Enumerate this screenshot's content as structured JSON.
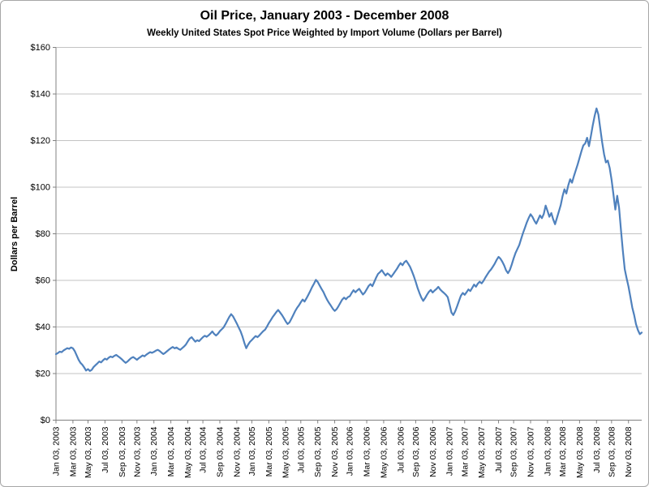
{
  "colors": {
    "line": "#4F81BD",
    "gridline": "#C3C3C3",
    "axis": "#808080",
    "background": "#FFFFFF",
    "border": "#A6A6A6",
    "text": "#000000"
  },
  "chart_data": {
    "type": "line",
    "title": "Oil Price, January 2003 - December 2008",
    "subtitle": "Weekly United States Spot Price Weighted by Import Volume (Dollars per Barrel)",
    "xlabel": "",
    "ylabel": "Dollars per Barrel",
    "ylim": [
      0,
      160
    ],
    "y_tick_step": 20,
    "y_tick_labels": [
      "$0",
      "$20",
      "$40",
      "$60",
      "$80",
      "$100",
      "$120",
      "$140",
      "$160"
    ],
    "x_tick_labels": [
      "Jan 03, 2003",
      "Mar 03, 2003",
      "May 03, 2003",
      "Jul 03, 2003",
      "Sep 03, 2003",
      "Nov 03, 2003",
      "Jan 03, 2004",
      "Mar 03, 2004",
      "May 03, 2004",
      "Jul 03, 2004",
      "Sep 03, 2004",
      "Nov 03, 2004",
      "Jan 03, 2005",
      "Mar 03, 2005",
      "May 03, 2005",
      "Jul 03, 2005",
      "Sep 03, 2005",
      "Nov 03, 2005",
      "Jan 03, 2006",
      "Mar 03, 2006",
      "May 03, 2006",
      "Jul 03, 2006",
      "Sep 03, 2006",
      "Nov 03, 2006",
      "Jan 03, 2007",
      "Mar 03, 2007",
      "May 03, 2007",
      "Jul 03, 2007",
      "Sep 03, 2007",
      "Nov 03, 2007",
      "Jan 03, 2008",
      "Mar 03, 2008",
      "May 03, 2008",
      "Jul 03, 2008",
      "Sep 03, 2008",
      "Nov 03, 2008"
    ],
    "x_tick_week_interval": 8.6905,
    "x_tick_label_rotation": -90,
    "grid": true,
    "legend": "none",
    "series": [
      {
        "name": "Weekly U.S. spot price weighted by import volume",
        "color": "#4F81BD",
        "interval": "weekly",
        "start": "Jan 03, 2003",
        "end": "Dec 26, 2008",
        "values": [
          28.3,
          28.8,
          29.4,
          29.2,
          29.9,
          30.4,
          30.9,
          30.6,
          31.2,
          30.8,
          29.6,
          27.8,
          25.9,
          24.6,
          23.8,
          22.6,
          21.3,
          21.9,
          21.1,
          21.6,
          22.8,
          23.6,
          24.4,
          25.2,
          24.8,
          25.7,
          26.4,
          26.0,
          26.8,
          27.3,
          27.0,
          27.6,
          28.0,
          27.4,
          26.8,
          26.1,
          25.3,
          24.6,
          25.2,
          26.0,
          26.7,
          27.1,
          26.5,
          25.9,
          26.6,
          27.2,
          27.8,
          27.4,
          28.1,
          28.7,
          29.2,
          28.9,
          29.3,
          29.8,
          30.2,
          29.7,
          29.0,
          28.4,
          28.9,
          29.6,
          30.3,
          30.9,
          31.4,
          30.8,
          31.2,
          30.6,
          30.2,
          30.9,
          31.6,
          32.5,
          33.8,
          35.0,
          35.6,
          34.6,
          33.7,
          34.3,
          33.9,
          34.8,
          35.6,
          36.2,
          35.8,
          36.4,
          37.2,
          38.1,
          37.0,
          36.3,
          37.1,
          38.2,
          39.0,
          39.8,
          41.2,
          42.8,
          44.3,
          45.5,
          44.6,
          43.1,
          41.5,
          39.8,
          38.2,
          36.0,
          33.2,
          30.9,
          32.4,
          33.6,
          34.4,
          35.3,
          36.1,
          35.6,
          36.4,
          37.3,
          38.2,
          38.8,
          40.1,
          41.6,
          42.9,
          44.2,
          45.3,
          46.4,
          47.3,
          46.2,
          45.1,
          43.8,
          42.4,
          41.3,
          42.0,
          43.5,
          45.1,
          46.8,
          48.2,
          49.3,
          50.6,
          51.8,
          50.9,
          52.3,
          53.8,
          55.4,
          57.1,
          58.6,
          60.2,
          59.3,
          57.8,
          56.4,
          55.0,
          53.2,
          51.6,
          50.3,
          49.1,
          47.8,
          46.9,
          47.6,
          48.9,
          50.4,
          51.8,
          52.6,
          51.9,
          52.8,
          53.2,
          54.6,
          55.8,
          54.9,
          55.7,
          56.4,
          55.1,
          53.9,
          54.8,
          56.2,
          57.6,
          58.4,
          57.5,
          59.3,
          61.2,
          62.8,
          63.5,
          64.4,
          63.2,
          62.1,
          63.0,
          62.4,
          61.5,
          62.6,
          63.8,
          64.9,
          66.3,
          67.4,
          66.5,
          67.8,
          68.4,
          67.2,
          65.8,
          63.9,
          61.8,
          59.4,
          56.8,
          54.5,
          52.6,
          51.2,
          52.4,
          53.8,
          55.1,
          55.9,
          54.8,
          55.6,
          56.3,
          57.2,
          56.1,
          55.3,
          54.6,
          53.8,
          52.8,
          49.6,
          46.2,
          45.1,
          46.8,
          48.9,
          51.2,
          53.4,
          54.6,
          53.8,
          54.9,
          56.1,
          55.4,
          56.8,
          58.2,
          57.3,
          58.6,
          59.4,
          58.7,
          59.8,
          61.2,
          62.5,
          63.8,
          64.7,
          65.9,
          67.2,
          68.8,
          70.1,
          69.3,
          68.0,
          66.4,
          64.3,
          63.1,
          64.5,
          66.8,
          69.4,
          71.8,
          73.5,
          75.2,
          77.8,
          80.3,
          82.6,
          84.9,
          86.8,
          88.4,
          87.2,
          85.6,
          84.3,
          86.1,
          87.9,
          86.7,
          88.5,
          92.1,
          89.8,
          87.3,
          88.9,
          86.2,
          84.1,
          86.8,
          89.6,
          92.3,
          96.2,
          99.1,
          97.3,
          100.8,
          103.4,
          101.9,
          104.7,
          107.2,
          109.8,
          112.6,
          115.4,
          117.9,
          118.8,
          121.2,
          117.6,
          121.8,
          126.4,
          130.6,
          133.8,
          131.2,
          125.3,
          119.4,
          114.2,
          110.6,
          111.4,
          108.3,
          103.1,
          96.8,
          90.4,
          96.3,
          91.2,
          81.4,
          72.6,
          64.8,
          60.9,
          57.4,
          52.8,
          48.3,
          45.1,
          41.2,
          38.6,
          36.9,
          37.6
        ]
      }
    ]
  }
}
